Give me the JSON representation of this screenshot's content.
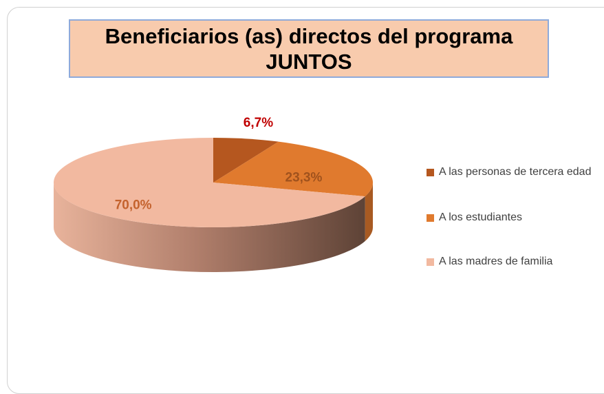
{
  "chart_data": {
    "type": "pie",
    "title": "Beneficiarios (as) directos del programa JUNTOS",
    "categories": [
      "A las personas de tercera edad",
      "A los estudiantes",
      "A las madres de familia"
    ],
    "values": [
      6.7,
      23.3,
      70.0
    ],
    "value_labels": [
      "6,7%",
      "23,3%",
      "70,0%"
    ],
    "colors": [
      "#b5571f",
      "#e07a2e",
      "#f2b9a0"
    ],
    "legend": "right"
  }
}
